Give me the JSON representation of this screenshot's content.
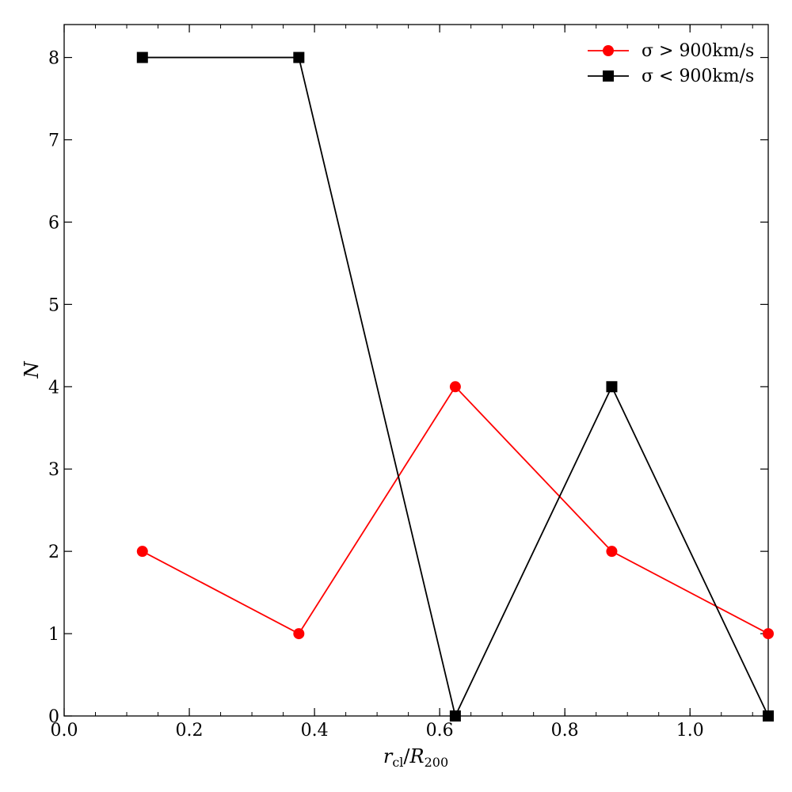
{
  "chart_data": {
    "type": "line",
    "title": "",
    "xlabel": "r_cl/R_200",
    "ylabel": "N",
    "xlim": [
      0.0,
      1.125
    ],
    "ylim": [
      0,
      8.4
    ],
    "xticks": [
      0.0,
      0.2,
      0.4,
      0.6,
      0.8,
      1.0
    ],
    "xtick_labels": [
      "0.0",
      "0.2",
      "0.4",
      "0.6",
      "0.8",
      "1.0"
    ],
    "yticks": [
      0,
      1,
      2,
      3,
      4,
      5,
      6,
      7,
      8
    ],
    "ytick_labels": [
      "0",
      "1",
      "2",
      "3",
      "4",
      "5",
      "6",
      "7",
      "8"
    ],
    "grid": false,
    "legend_position": "top-right",
    "series": [
      {
        "name": "σ > 900km/s",
        "color": "#ff0000",
        "marker": "circle",
        "x": [
          0.125,
          0.375,
          0.625,
          0.875,
          1.125
        ],
        "y": [
          2,
          1,
          4,
          2,
          1
        ]
      },
      {
        "name": "σ < 900km/s",
        "color": "#000000",
        "marker": "square",
        "x": [
          0.125,
          0.375,
          0.625,
          0.875,
          1.125
        ],
        "y": [
          8,
          8,
          0,
          4,
          0
        ]
      }
    ]
  }
}
